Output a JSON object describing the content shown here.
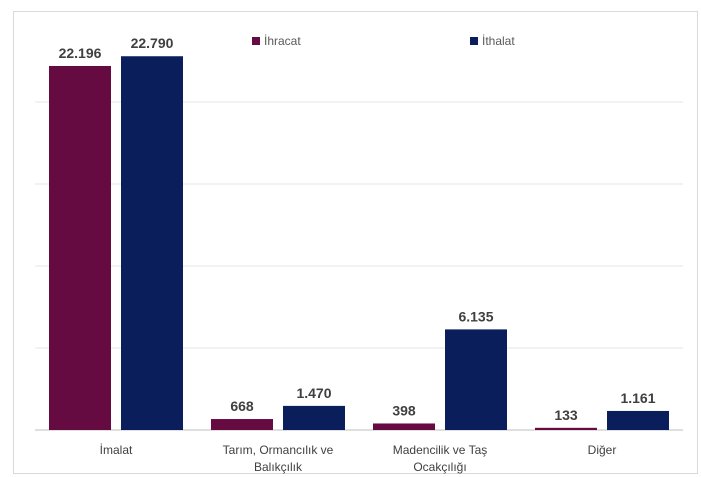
{
  "chart_data": {
    "type": "bar",
    "categories": [
      "İmalat",
      "Tarım, Ormancılık ve Balıkçılık",
      "Madencilik ve Taş Ocakçılığı",
      "Diğer"
    ],
    "category_lines": [
      [
        "İmalat"
      ],
      [
        "Tarım, Ormancılık ve",
        "Balıkçılık"
      ],
      [
        "Madencilik ve Taş",
        "Ocakçılığı"
      ],
      [
        "Diğer"
      ]
    ],
    "series": [
      {
        "name": "İhracat",
        "values": [
          22196,
          668,
          398,
          133
        ],
        "labels": [
          "22.196",
          "668",
          "398",
          "133"
        ],
        "color": "#660a42"
      },
      {
        "name": "İthalat",
        "values": [
          22790,
          1470,
          6135,
          1161
        ],
        "labels": [
          "22.790",
          "1.470",
          "6.135",
          "1.161"
        ],
        "color": "#0a1e5c"
      }
    ],
    "ylim": [
      0,
      25000
    ],
    "grid": true,
    "legend_position": "top",
    "title": "",
    "xlabel": "",
    "ylabel": ""
  }
}
